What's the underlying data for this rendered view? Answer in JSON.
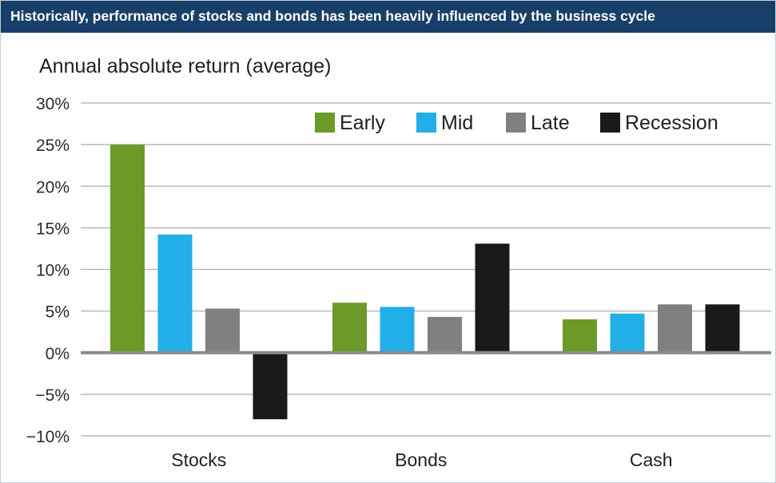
{
  "header": {
    "title": "Historically, performance of stocks and bonds has been heavily influenced by the business cycle"
  },
  "colors": {
    "banner": "#183f69",
    "Early": "#6b9a28",
    "Mid": "#22aee6",
    "Late": "#808080",
    "Recession": "#1a1a1a",
    "grid": "#b9b9b9",
    "zero_line": "#8a8a8a"
  },
  "chart_data": {
    "type": "bar",
    "title": "Historically, performance of stocks and bonds has been heavily influenced by the business cycle",
    "ylabel": "Annual absolute return (average)",
    "xlabel": "",
    "categories": [
      "Stocks",
      "Bonds",
      "Cash"
    ],
    "series": [
      {
        "name": "Early",
        "values": [
          25.0,
          6.0,
          4.0
        ]
      },
      {
        "name": "Mid",
        "values": [
          14.2,
          5.5,
          4.7
        ]
      },
      {
        "name": "Late",
        "values": [
          5.3,
          4.3,
          5.8
        ]
      },
      {
        "name": "Recession",
        "values": [
          -8.0,
          13.1,
          5.8
        ]
      }
    ],
    "ylim": [
      -10,
      30
    ],
    "yticks": [
      30,
      25,
      20,
      15,
      10,
      5,
      0,
      -5,
      -10
    ],
    "ytick_labels": [
      "30%",
      "25%",
      "20%",
      "15%",
      "10%",
      "5%",
      "0%",
      "−5%",
      "−10%"
    ],
    "grid": true,
    "legend_position": "top-right"
  }
}
